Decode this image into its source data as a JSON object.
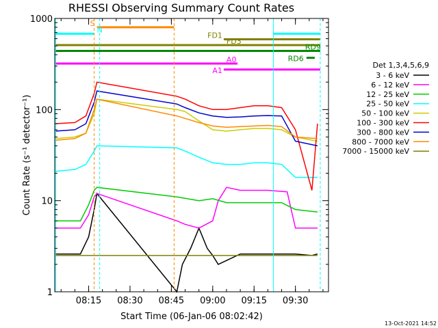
{
  "chart_data": {
    "type": "line",
    "title": "RHESSI Observing Summary Count Rates",
    "xlabel": "Start Time (06-Jan-06 08:02:42)",
    "ylabel": "Count Rate (s⁻¹ detector⁻¹)",
    "y_scale": "log",
    "ylim": [
      1,
      1000
    ],
    "xlim": [
      "08:02:42",
      "09:42:00"
    ],
    "x_ticks": [
      "08:15",
      "08:30",
      "08:45",
      "09:00",
      "09:15",
      "09:30"
    ],
    "y_ticks": [
      "1",
      "10",
      "100",
      "1000"
    ],
    "grid": false,
    "legend_position": "right",
    "legend_title": "Det 1,3,4,5,6,9",
    "timestamp": "13-Oct-2021 14:52",
    "series": [
      {
        "name": "3 - 6 keV",
        "color": "#000000",
        "x": [
          "08:03",
          "08:12",
          "08:15",
          "08:17",
          "08:18",
          "08:47",
          "08:49",
          "08:52",
          "08:55",
          "08:58",
          "09:00",
          "09:02",
          "09:10",
          "09:20",
          "09:30",
          "09:36",
          "09:38"
        ],
        "y": [
          2.6,
          2.6,
          4.0,
          8.0,
          12.0,
          1.0,
          2.0,
          3.0,
          5.0,
          3.0,
          2.5,
          2.0,
          2.6,
          2.6,
          2.6,
          2.5,
          2.6
        ]
      },
      {
        "name": "6 - 12 keV",
        "color": "#ff00ff",
        "x": [
          "08:03",
          "08:12",
          "08:15",
          "08:17",
          "08:18",
          "08:47",
          "08:50",
          "08:55",
          "09:00",
          "09:02",
          "09:05",
          "09:10",
          "09:20",
          "09:27",
          "09:30",
          "09:38"
        ],
        "y": [
          5.0,
          5.0,
          7.0,
          11.0,
          12.0,
          6.0,
          5.5,
          5.0,
          6.0,
          10.0,
          14.0,
          13.0,
          13.0,
          12.5,
          5.0,
          5.0
        ]
      },
      {
        "name": "12 - 25 keV",
        "color": "#00cc00",
        "x": [
          "08:03",
          "08:12",
          "08:15",
          "08:17",
          "08:18",
          "08:47",
          "08:55",
          "09:00",
          "09:05",
          "09:10",
          "09:20",
          "09:25",
          "09:30",
          "09:38"
        ],
        "y": [
          6.0,
          6.0,
          9.0,
          13.0,
          14.0,
          11.0,
          10.0,
          10.5,
          9.5,
          9.5,
          9.5,
          9.5,
          8.0,
          7.5
        ]
      },
      {
        "name": "25 - 50 keV",
        "color": "#00ffff",
        "x": [
          "08:03",
          "08:10",
          "08:14",
          "08:17",
          "08:18",
          "08:47",
          "08:50",
          "08:55",
          "09:00",
          "09:05",
          "09:10",
          "09:15",
          "09:20",
          "09:25",
          "09:30",
          "09:38"
        ],
        "y": [
          21.0,
          22.0,
          25.0,
          35.0,
          40.0,
          38.0,
          35.0,
          30.0,
          26.0,
          25.0,
          25.0,
          26.0,
          26.0,
          25.0,
          18.0,
          18.0
        ]
      },
      {
        "name": "50 - 100 keV",
        "color": "#cccc00",
        "x": [
          "08:03",
          "08:10",
          "08:14",
          "08:17",
          "08:18",
          "08:47",
          "08:50",
          "08:55",
          "09:00",
          "09:05",
          "09:10",
          "09:15",
          "09:20",
          "09:25",
          "09:30",
          "09:38"
        ],
        "y": [
          48.0,
          50.0,
          55.0,
          90.0,
          130.0,
          100.0,
          95.0,
          75.0,
          60.0,
          58.0,
          60.0,
          62.0,
          62.0,
          60.0,
          50.0,
          45.0
        ]
      },
      {
        "name": "100 - 300 keV",
        "color": "#ff0000",
        "x": [
          "08:03",
          "08:10",
          "08:14",
          "08:17",
          "08:18",
          "08:47",
          "08:50",
          "08:55",
          "09:00",
          "09:05",
          "09:10",
          "09:15",
          "09:20",
          "09:25",
          "09:30",
          "09:36",
          "09:38"
        ],
        "y": [
          70.0,
          72.0,
          85.0,
          150.0,
          200.0,
          140.0,
          130.0,
          110.0,
          100.0,
          100.0,
          105.0,
          110.0,
          110.0,
          105.0,
          60.0,
          13.0,
          70.0
        ]
      },
      {
        "name": "300 - 800 keV",
        "color": "#0000cc",
        "x": [
          "08:03",
          "08:10",
          "08:14",
          "08:17",
          "08:18",
          "08:47",
          "08:50",
          "08:55",
          "09:00",
          "09:05",
          "09:10",
          "09:15",
          "09:20",
          "09:25",
          "09:30",
          "09:38"
        ],
        "y": [
          58.0,
          60.0,
          70.0,
          120.0,
          160.0,
          115.0,
          105.0,
          92.0,
          85.0,
          82.0,
          83.0,
          85.0,
          86.0,
          85.0,
          45.0,
          40.0
        ]
      },
      {
        "name": "800 - 7000 keV",
        "color": "#ff8800",
        "x": [
          "08:03",
          "08:10",
          "08:14",
          "08:17",
          "08:18",
          "08:47",
          "08:50",
          "08:55",
          "09:00",
          "09:05",
          "09:10",
          "09:15",
          "09:20",
          "09:25",
          "09:30",
          "09:38"
        ],
        "y": [
          46.0,
          48.0,
          55.0,
          100.0,
          130.0,
          85.0,
          80.0,
          72.0,
          66.0,
          64.0,
          65.0,
          66.0,
          67.0,
          65.0,
          50.0,
          48.0
        ]
      },
      {
        "name": "7000 - 15000 keV",
        "color": "#808000",
        "x": [
          "08:03",
          "08:10",
          "08:15",
          "08:18",
          "08:47",
          "08:55",
          "09:00",
          "09:10",
          "09:20",
          "09:30",
          "09:38"
        ],
        "y": [
          2.5,
          2.5,
          2.5,
          2.5,
          2.5,
          2.5,
          2.5,
          2.5,
          2.5,
          2.5,
          2.5
        ]
      }
    ],
    "state_bars": [
      {
        "label": "S",
        "color": "#ff8800",
        "y": 800,
        "x_start": "08:18",
        "x_end": "08:46"
      },
      {
        "label": "N",
        "color": "#00ffff",
        "y": 680,
        "x_start": "08:03",
        "x_end": "08:17"
      },
      {
        "label": "N",
        "color": "#00ffff",
        "y": 680,
        "x_start": "09:22",
        "x_end": "09:39"
      },
      {
        "label": "FD1",
        "color": "#808000",
        "y": 590,
        "x_start": "09:04",
        "x_end": "09:39"
      },
      {
        "label": "FD3",
        "color": "#808000",
        "y": 510,
        "x_start": "08:03",
        "x_end": "09:39"
      },
      {
        "label": "RD9",
        "color": "#008800",
        "y": 440,
        "x_start": "08:03",
        "x_end": "09:39"
      },
      {
        "label": "RD6",
        "color": "#008800",
        "y": 370,
        "x_start": "09:34",
        "x_end": "09:37"
      },
      {
        "label": "A0",
        "color": "#ff00ff",
        "y": 320,
        "x_start": "08:03",
        "x_end": "09:09"
      },
      {
        "label": "A1",
        "color": "#ff00ff",
        "y": 275,
        "x_start": "09:04",
        "x_end": "09:39"
      }
    ],
    "vertical_lines": [
      {
        "color": "#00ffff",
        "style": "solid",
        "x": "08:03"
      },
      {
        "color": "#ff8800",
        "style": "dashed",
        "x": "08:17"
      },
      {
        "color": "#00ffff",
        "style": "dashed",
        "x": "08:19"
      },
      {
        "color": "#ff8800",
        "style": "dashed",
        "x": "08:46"
      },
      {
        "color": "#00ffff",
        "style": "solid",
        "x": "09:22"
      },
      {
        "color": "#00ffff",
        "style": "dashed",
        "x": "09:39"
      }
    ]
  }
}
